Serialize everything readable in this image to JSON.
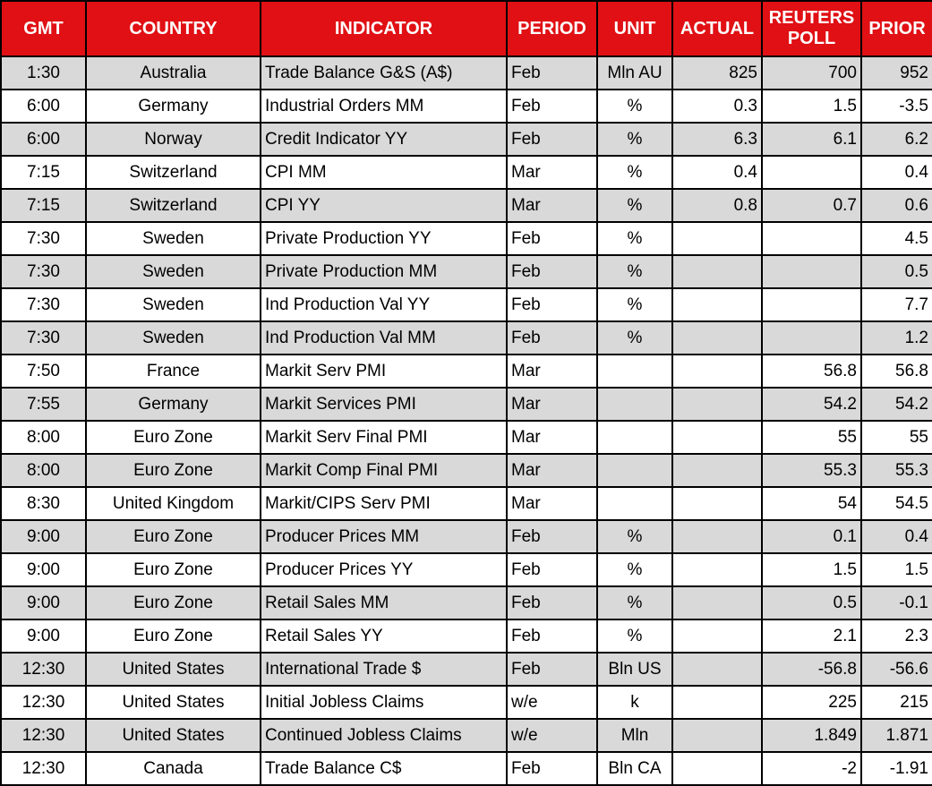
{
  "colors": {
    "header_bg": "#E01014",
    "header_text": "#FFFFFF",
    "row_bg": "#FFFFFF",
    "row_alt_bg": "#D9D9D9",
    "grid_border": "#000000",
    "cell_text": "#000000"
  },
  "chart_data": {
    "type": "table",
    "columns": [
      "GMT",
      "COUNTRY",
      "INDICATOR",
      "PERIOD",
      "UNIT",
      "ACTUAL",
      "REUTERS POLL",
      "PRIOR"
    ],
    "rows": [
      [
        "1:30",
        "Australia",
        "Trade Balance G&S (A$)",
        "Feb",
        "Mln AU",
        "825",
        "700",
        "952"
      ],
      [
        "6:00",
        "Germany",
        "Industrial Orders MM",
        "Feb",
        "%",
        "0.3",
        "1.5",
        "-3.5"
      ],
      [
        "6:00",
        "Norway",
        "Credit Indicator YY",
        "Feb",
        "%",
        "6.3",
        "6.1",
        "6.2"
      ],
      [
        "7:15",
        "Switzerland",
        "CPI MM",
        "Mar",
        "%",
        "0.4",
        "",
        "0.4"
      ],
      [
        "7:15",
        "Switzerland",
        "CPI YY",
        "Mar",
        "%",
        "0.8",
        "0.7",
        "0.6"
      ],
      [
        "7:30",
        "Sweden",
        "Private Production YY",
        "Feb",
        "%",
        "",
        "",
        "4.5"
      ],
      [
        "7:30",
        "Sweden",
        "Private Production MM",
        "Feb",
        "%",
        "",
        "",
        "0.5"
      ],
      [
        "7:30",
        "Sweden",
        "Ind Production Val YY",
        "Feb",
        "%",
        "",
        "",
        "7.7"
      ],
      [
        "7:30",
        "Sweden",
        "Ind Production Val MM",
        "Feb",
        "%",
        "",
        "",
        "1.2"
      ],
      [
        "7:50",
        "France",
        "Markit Serv PMI",
        "Mar",
        "",
        "",
        "56.8",
        "56.8"
      ],
      [
        "7:55",
        "Germany",
        "Markit Services PMI",
        "Mar",
        "",
        "",
        "54.2",
        "54.2"
      ],
      [
        "8:00",
        "Euro Zone",
        "Markit Serv Final PMI",
        "Mar",
        "",
        "",
        "55",
        "55"
      ],
      [
        "8:00",
        "Euro Zone",
        "Markit Comp Final PMI",
        "Mar",
        "",
        "",
        "55.3",
        "55.3"
      ],
      [
        "8:30",
        "United Kingdom",
        "Markit/CIPS Serv PMI",
        "Mar",
        "",
        "",
        "54",
        "54.5"
      ],
      [
        "9:00",
        "Euro Zone",
        "Producer Prices MM",
        "Feb",
        "%",
        "",
        "0.1",
        "0.4"
      ],
      [
        "9:00",
        "Euro Zone",
        "Producer Prices YY",
        "Feb",
        "%",
        "",
        "1.5",
        "1.5"
      ],
      [
        "9:00",
        "Euro Zone",
        "Retail Sales MM",
        "Feb",
        "%",
        "",
        "0.5",
        "-0.1"
      ],
      [
        "9:00",
        "Euro Zone",
        "Retail Sales YY",
        "Feb",
        "%",
        "",
        "2.1",
        "2.3"
      ],
      [
        "12:30",
        "United States",
        "International Trade $",
        "Feb",
        "Bln US",
        "",
        "-56.8",
        "-56.6"
      ],
      [
        "12:30",
        "United States",
        "Initial Jobless Claims",
        "w/e",
        "k",
        "",
        "225",
        "215"
      ],
      [
        "12:30",
        "United States",
        "Continued Jobless Claims",
        "w/e",
        "Mln",
        "",
        "1.849",
        "1.871"
      ],
      [
        "12:30",
        "Canada",
        "Trade Balance C$",
        "Feb",
        "Bln CA",
        "",
        "-2",
        "-1.91"
      ]
    ]
  }
}
